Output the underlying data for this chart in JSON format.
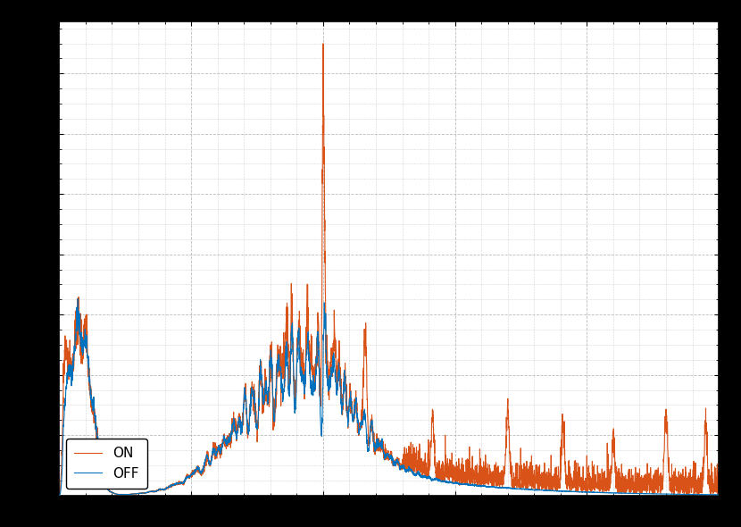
{
  "color_off": "#0072BD",
  "color_on": "#D95319",
  "legend_labels": [
    "OFF",
    "ON"
  ],
  "background_color": "#000000",
  "axes_background": "#ffffff",
  "grid_color": "#aaaaaa",
  "xlim": [
    0,
    500
  ],
  "fig_width": 8.3,
  "fig_height": 5.9,
  "dpi": 100,
  "linewidth": 0.8,
  "legend_loc": "lower left",
  "legend_fontsize": 11
}
